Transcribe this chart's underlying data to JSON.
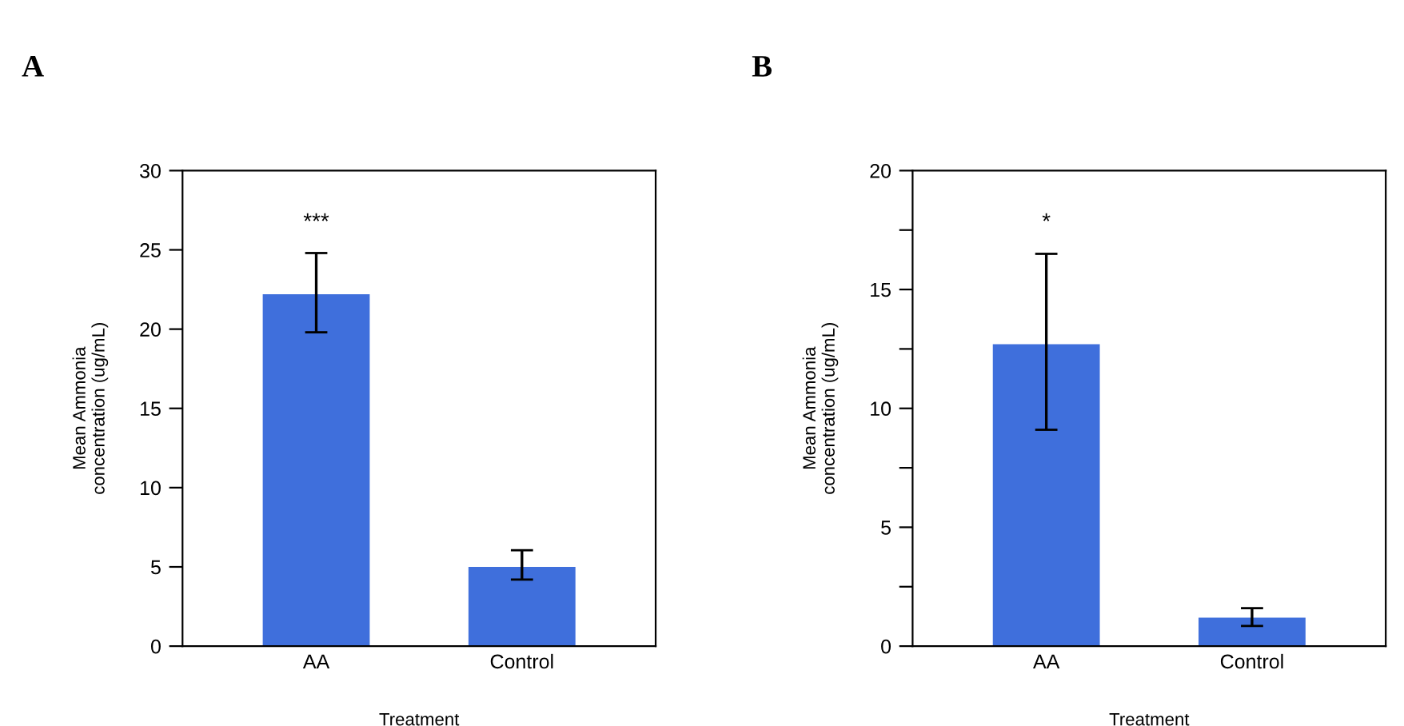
{
  "chart_data": [
    {
      "type": "bar",
      "title": "A",
      "xlabel": "Treatment",
      "ylabel": "Mean Ammonia\nconcentration (ug/mL)",
      "categories": [
        "AA",
        "Control"
      ],
      "values": [
        22.2,
        5.0
      ],
      "errors": [
        [
          19.8,
          24.8
        ],
        [
          4.2,
          6.05
        ]
      ],
      "color": "#3f6fdc",
      "ylim": [
        0,
        30
      ],
      "yticks": [
        0,
        5,
        10,
        15,
        20,
        25,
        30
      ],
      "grid": false,
      "annotations": [
        "***"
      ]
    },
    {
      "type": "bar",
      "title": "B",
      "xlabel": "Treatment",
      "ylabel": "Mean Ammonia\nconcentration (ug/mL)",
      "categories": [
        "AA",
        "Control"
      ],
      "values": [
        12.7,
        1.2
      ],
      "errors": [
        [
          9.1,
          16.5
        ],
        [
          0.85,
          1.6
        ]
      ],
      "color": "#3f6fdc",
      "ylim": [
        0,
        20
      ],
      "yticks": [
        0,
        {
          "value": 2.5,
          "label": null
        },
        5,
        {
          "value": 7.5,
          "label": null
        },
        10,
        {
          "value": 12.5,
          "label": null
        },
        15,
        {
          "value": 17.5,
          "label": null
        },
        20
      ],
      "grid": false,
      "annotations": [
        "*"
      ]
    }
  ]
}
